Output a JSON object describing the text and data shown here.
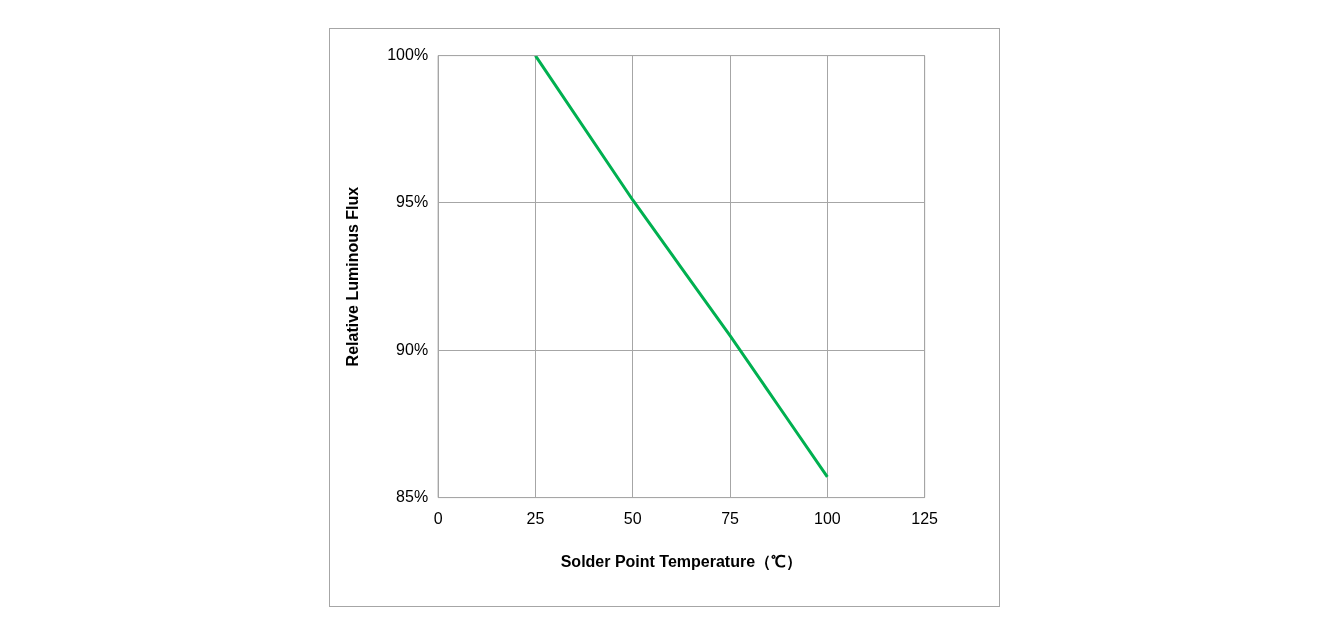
{
  "chart_data": {
    "type": "line",
    "xlabel": "Solder Point Temperature（℃）",
    "ylabel": "Relative Luminous Flux",
    "x": [
      25,
      50,
      62.5,
      75,
      87.5,
      100
    ],
    "series": [
      {
        "color": "#00b050",
        "values": [
          100,
          95.1,
          92.8,
          90.5,
          88.1,
          85.7
        ]
      }
    ],
    "xlim": [
      0,
      125
    ],
    "xticks": [
      0,
      25,
      50,
      75,
      100,
      125
    ],
    "ylim": [
      85,
      100
    ],
    "yticks": [
      {
        "value": 85,
        "label": "85%"
      },
      {
        "value": 90,
        "label": "90%"
      },
      {
        "value": 95,
        "label": "95%"
      },
      {
        "value": 100,
        "label": "100%"
      }
    ],
    "grid": true,
    "legend": false,
    "marker": "none",
    "line_style": "solid"
  }
}
